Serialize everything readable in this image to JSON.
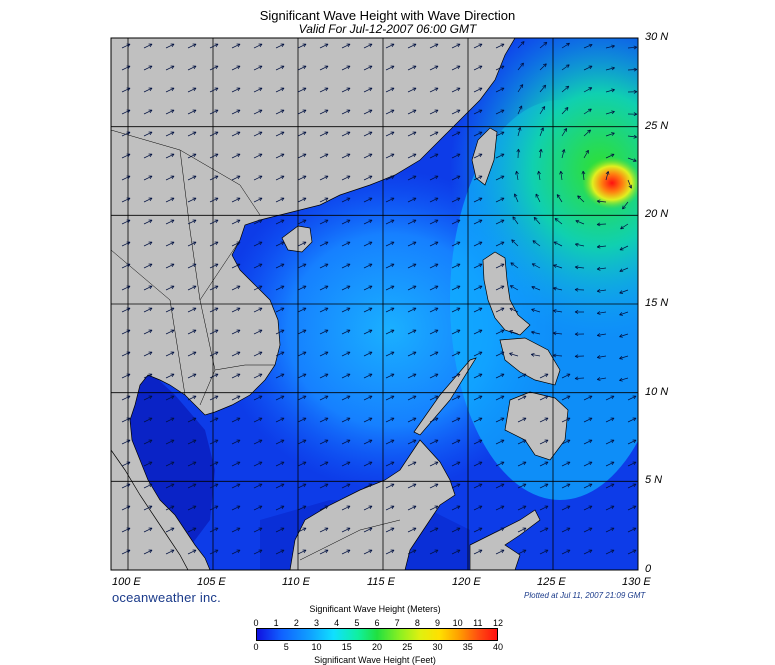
{
  "title": "Significant Wave Height with Wave Direction",
  "subtitle": "Valid For Jul-12-2007 06:00 GMT",
  "lat_labels": [
    "30 N",
    "25 N",
    "20 N",
    "15 N",
    "10 N",
    "5 N",
    "0"
  ],
  "lon_labels": [
    "100 E",
    "105 E",
    "110 E",
    "115 E",
    "120 E",
    "125 E",
    "130 E"
  ],
  "brand": "oceanweather inc.",
  "plotted": "Plotted at Jul 11, 2007 21:09 GMT",
  "colorbar": {
    "meters_title": "Significant Wave Height (Meters)",
    "feet_title": "Significant Wave Height (Feet)",
    "meters_ticks": [
      "0",
      "1",
      "2",
      "3",
      "4",
      "5",
      "6",
      "7",
      "8",
      "9",
      "10",
      "11",
      "12"
    ],
    "feet_ticks": [
      "0",
      "5",
      "10",
      "15",
      "20",
      "25",
      "30",
      "35",
      "40"
    ]
  },
  "colors": {
    "land": "#c0c0c0",
    "sea_low": "#0a2ee0",
    "sea_mid": "#1aa0ff",
    "sea_high": "#20e040",
    "peak": "#ff2010"
  },
  "map_extent": {
    "lon": [
      99,
      130
    ],
    "lat": [
      0,
      30
    ]
  }
}
